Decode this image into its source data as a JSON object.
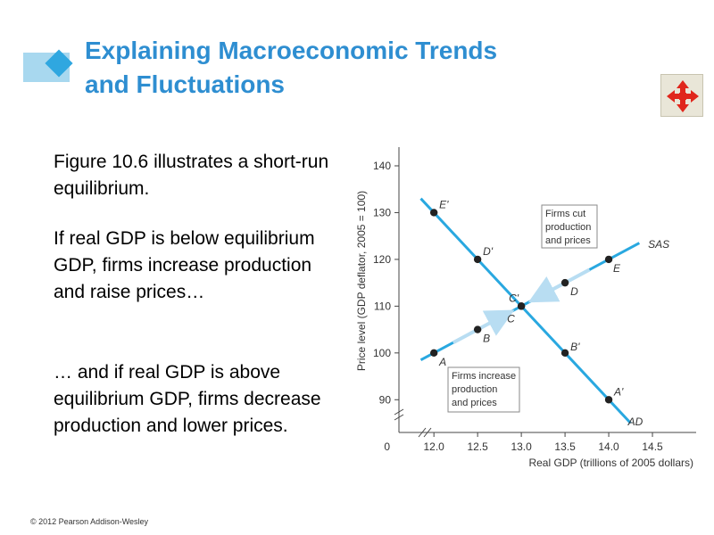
{
  "title": {
    "line1": "Explaining Macroeconomic Trends",
    "line2": "and Fluctuations"
  },
  "paragraphs": [
    "Figure 10.6 illustrates a short-run equilibrium.",
    "If real GDP is below equilibrium GDP, firms increase production and raise prices…",
    "… and if real GDP is above equilibrium GDP, firms decrease production and lower prices."
  ],
  "copyright": "© 2012 Pearson Addison-Wesley",
  "icons": {
    "nav": "move-arrows-icon"
  },
  "colors": {
    "title": "#2e8ed1",
    "curve": "#29a8e0",
    "arrow": "#b8ddf2"
  },
  "chart_data": {
    "type": "line",
    "xlabel": "Real GDP (trillions of 2005 dollars)",
    "ylabel": "Price level (GDP deflator, 2005 = 100)",
    "xlim": [
      11.6,
      15.0
    ],
    "ylim": [
      83,
      144
    ],
    "x_ticks": [
      12.0,
      12.5,
      13.0,
      13.5,
      14.0,
      14.5
    ],
    "x_tick_labels": [
      "12.0",
      "12.5",
      "13.0",
      "13.5",
      "14.0",
      "14.5"
    ],
    "y_ticks": [
      90,
      100,
      110,
      120,
      130,
      140
    ],
    "origin_label": "0",
    "series": [
      {
        "name": "SAS",
        "points": [
          {
            "x": 12.0,
            "y": 100,
            "label": "A"
          },
          {
            "x": 12.5,
            "y": 105,
            "label": "B"
          },
          {
            "x": 13.0,
            "y": 110,
            "label": "C"
          },
          {
            "x": 13.5,
            "y": 115,
            "label": "D"
          },
          {
            "x": 14.0,
            "y": 120,
            "label": "E"
          }
        ]
      },
      {
        "name": "AD",
        "points": [
          {
            "x": 12.0,
            "y": 130,
            "label": "E'"
          },
          {
            "x": 12.5,
            "y": 120,
            "label": "D'"
          },
          {
            "x": 13.0,
            "y": 110,
            "label": "C'"
          },
          {
            "x": 13.5,
            "y": 100,
            "label": "B'"
          },
          {
            "x": 14.0,
            "y": 90,
            "label": "A'"
          }
        ]
      }
    ],
    "annotations": [
      {
        "lines": [
          "Firms cut",
          "production",
          "and prices"
        ]
      },
      {
        "lines": [
          "Firms increase",
          "production",
          "and prices"
        ]
      }
    ]
  }
}
